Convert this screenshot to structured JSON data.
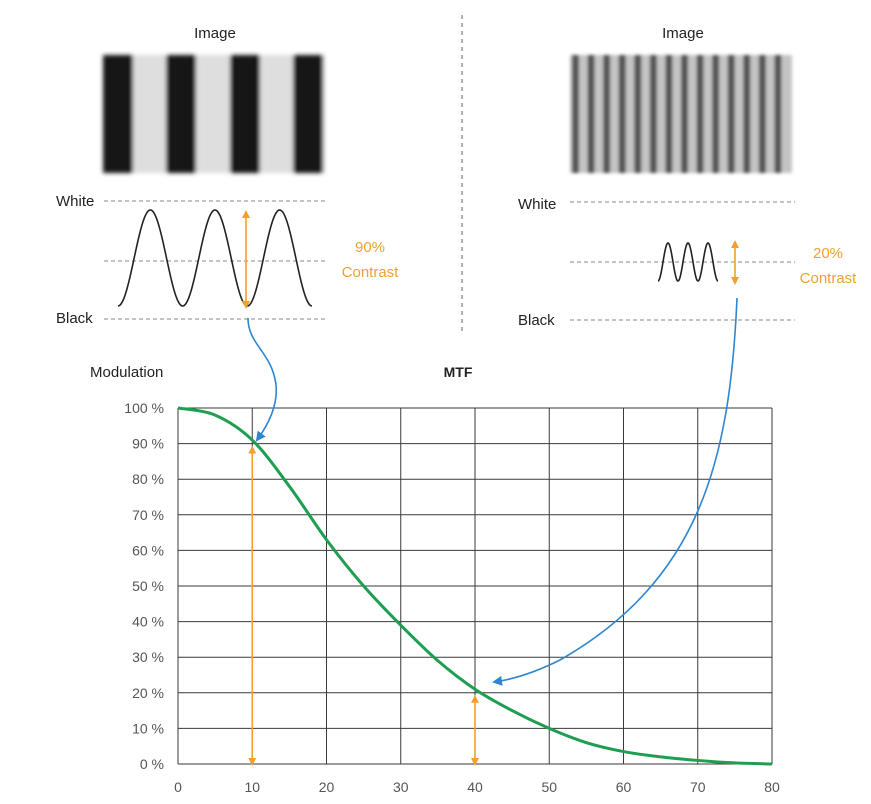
{
  "colors": {
    "curve": "#1e9e50",
    "arrow_orange": "#f0a030",
    "arrow_blue": "#2f86d0",
    "grid": "#3a3a3a",
    "dashed": "#888888",
    "bar_dark": "#141414",
    "bar_light": "#dedede"
  },
  "left_panel": {
    "image_label": "Image",
    "white_label": "White",
    "black_label": "Black",
    "contrast_percent": "90%",
    "contrast_word": "Contrast"
  },
  "right_panel": {
    "image_label": "Image",
    "white_label": "White",
    "black_label": "Black",
    "contrast_percent": "20%",
    "contrast_word": "Contrast"
  },
  "chart_data": {
    "type": "line",
    "title": "MTF",
    "ylabel": "Modulation",
    "xlabel": "",
    "xlim": [
      0,
      80
    ],
    "ylim": [
      0,
      100
    ],
    "grid": true,
    "x_ticks": [
      0,
      10,
      20,
      30,
      40,
      50,
      60,
      70,
      80
    ],
    "y_tick_labels": [
      "0 %",
      "10 %",
      "20 %",
      "30 %",
      "40 %",
      "50 %",
      "60 %",
      "70 %",
      "80 %",
      "90 %",
      "100 %"
    ],
    "series": [
      {
        "x": [
          0,
          5,
          10,
          15,
          20,
          25,
          30,
          35,
          40,
          45,
          50,
          55,
          60,
          65,
          70,
          75,
          80
        ],
        "y": [
          100,
          98,
          91,
          78,
          63,
          50,
          39,
          29,
          21,
          15,
          10,
          6,
          3.5,
          2,
          1,
          0.3,
          0
        ]
      }
    ],
    "markers": [
      {
        "x": 10,
        "y": 90
      },
      {
        "x": 40,
        "y": 20
      }
    ]
  }
}
